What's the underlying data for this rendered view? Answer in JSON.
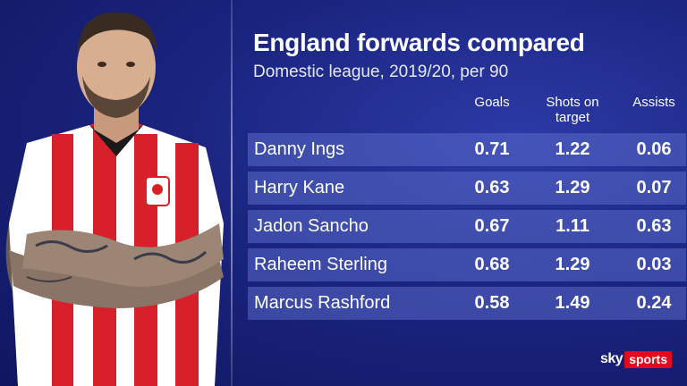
{
  "title": "England forwards compared",
  "subtitle": "Domestic league, 2019/20, per 90",
  "columns": {
    "goals": "Goals",
    "shots_line1": "Shots on",
    "shots_line2": "target",
    "assists": "Assists"
  },
  "rows": [
    {
      "name": "Danny Ings",
      "goals": "0.71",
      "shots": "1.22",
      "assists": "0.06"
    },
    {
      "name": "Harry Kane",
      "goals": "0.63",
      "shots": "1.29",
      "assists": "0.07"
    },
    {
      "name": "Jadon Sancho",
      "goals": "0.67",
      "shots": "1.11",
      "assists": "0.63"
    },
    {
      "name": "Raheem Sterling",
      "goals": "0.68",
      "shots": "1.29",
      "assists": "0.03"
    },
    {
      "name": "Marcus Rashford",
      "goals": "0.58",
      "shots": "1.49",
      "assists": "0.24"
    }
  ],
  "logo": {
    "sky": "sky",
    "sports": "sports"
  },
  "colors": {
    "background": "#1b2580",
    "row_fill": "#5a69c8",
    "brand_red": "#e10a1e",
    "shirt_red": "#d8202a"
  },
  "image": {
    "icon": "player-photo"
  }
}
